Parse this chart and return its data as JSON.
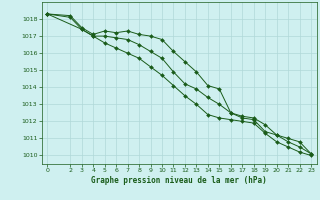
{
  "title": "Graphe pression niveau de la mer (hPa)",
  "background_color": "#cff0f0",
  "grid_color": "#b0d8d8",
  "line_color": "#1a5c1a",
  "xlim": [
    -0.5,
    23.5
  ],
  "ylim": [
    1009.5,
    1019.0
  ],
  "yticks": [
    1010,
    1011,
    1012,
    1013,
    1014,
    1015,
    1016,
    1017,
    1018
  ],
  "xtick_positions": [
    0,
    2,
    3,
    4,
    5,
    6,
    7,
    8,
    9,
    10,
    11,
    12,
    13,
    14,
    15,
    16,
    17,
    18,
    19,
    20,
    21,
    22,
    23
  ],
  "xtick_labels": [
    "0",
    "2",
    "3",
    "4",
    "5",
    "6",
    "7",
    "8",
    "9",
    "10",
    "11",
    "12",
    "13",
    "14",
    "15",
    "16",
    "17",
    "18",
    "19",
    "20",
    "21",
    "22",
    "23"
  ],
  "series": [
    {
      "x": [
        0,
        2,
        3,
        4,
        5,
        6,
        7,
        8,
        9,
        10,
        11,
        12,
        13,
        14,
        15,
        16,
        17,
        18,
        19,
        20,
        21,
        22,
        23
      ],
      "y": [
        1018.3,
        1018.2,
        1017.5,
        1017.1,
        1017.3,
        1017.2,
        1017.3,
        1017.1,
        1017.0,
        1016.8,
        1016.1,
        1015.5,
        1014.9,
        1014.1,
        1013.9,
        1012.5,
        1012.3,
        1012.2,
        1011.8,
        1011.2,
        1011.0,
        1010.8,
        1010.1
      ]
    },
    {
      "x": [
        0,
        2,
        3,
        4,
        5,
        6,
        7,
        8,
        9,
        10,
        11,
        12,
        13,
        14,
        15,
        16,
        17,
        18,
        19,
        20,
        21,
        22,
        23
      ],
      "y": [
        1018.3,
        1018.1,
        1017.4,
        1017.0,
        1017.0,
        1016.9,
        1016.8,
        1016.5,
        1016.1,
        1015.7,
        1014.9,
        1014.2,
        1013.9,
        1013.4,
        1013.0,
        1012.5,
        1012.2,
        1012.1,
        1011.4,
        1011.2,
        1010.8,
        1010.5,
        1010.1
      ]
    },
    {
      "x": [
        0,
        3,
        4,
        5,
        6,
        7,
        8,
        9,
        10,
        11,
        12,
        13,
        14,
        15,
        16,
        17,
        18,
        19,
        20,
        21,
        22,
        23
      ],
      "y": [
        1018.3,
        1017.4,
        1017.0,
        1016.6,
        1016.3,
        1016.0,
        1015.7,
        1015.2,
        1014.7,
        1014.1,
        1013.5,
        1013.0,
        1012.4,
        1012.2,
        1012.1,
        1012.0,
        1011.9,
        1011.3,
        1010.8,
        1010.5,
        1010.2,
        1010.0
      ]
    }
  ]
}
